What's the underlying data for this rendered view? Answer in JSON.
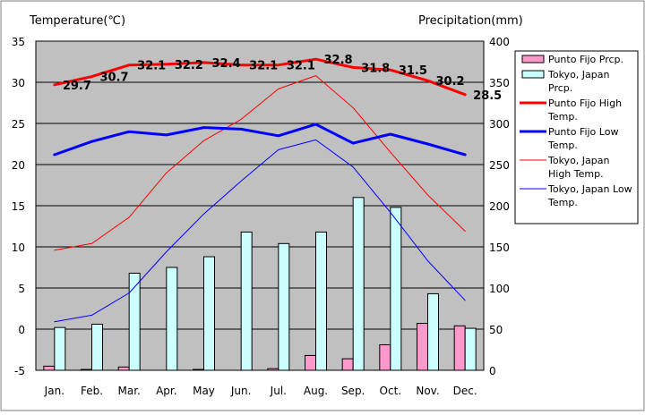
{
  "chart_data": {
    "type": "bar+line",
    "categories": [
      "Jan.",
      "Feb.",
      "Mar.",
      "Apr.",
      "May",
      "Jun.",
      "Jul.",
      "Aug.",
      "Sep.",
      "Oct.",
      "Nov.",
      "Dec."
    ],
    "y_left": {
      "label": "Temperature(℃)",
      "ylim": [
        -5,
        35
      ],
      "ticks": [
        -5,
        0,
        5,
        10,
        15,
        20,
        25,
        30,
        35
      ]
    },
    "y_right": {
      "label": "Precipitation(mm)",
      "ylim": [
        0,
        400
      ],
      "ticks": [
        0,
        50,
        100,
        150,
        200,
        250,
        300,
        350,
        400
      ]
    },
    "grid": true,
    "legend_position": "right",
    "bar_series": [
      {
        "name": "Punto Fijo Prcp.",
        "color": "#ff99cc",
        "values": [
          5,
          1,
          4,
          0,
          1,
          0,
          2,
          18,
          14,
          31,
          57,
          54
        ]
      },
      {
        "name": "Tokyo, Japan Prcp.",
        "color": "#ccffff",
        "values": [
          52,
          56,
          118,
          125,
          138,
          168,
          154,
          168,
          210,
          198,
          93,
          51
        ]
      }
    ],
    "line_series": [
      {
        "name": "Punto Fijo High Temp.",
        "color": "#ff0000",
        "width": 3,
        "values": [
          29.7,
          30.7,
          32.1,
          32.2,
          32.4,
          32.1,
          32.1,
          32.8,
          31.8,
          31.5,
          30.2,
          28.5
        ],
        "labels": [
          "29.7",
          "30.7",
          "32.1",
          "32.2",
          "32.4",
          "32.1",
          "32.1",
          "32.8",
          "31.8",
          "31.5",
          "30.2",
          "28.5"
        ]
      },
      {
        "name": "Punto Fijo Low Temp.",
        "color": "#0000ff",
        "width": 3,
        "values": [
          21.2,
          22.8,
          24.0,
          23.6,
          24.5,
          24.3,
          23.5,
          24.9,
          22.6,
          23.7,
          22.5,
          21.2
        ]
      },
      {
        "name": "Tokyo, Japan High Temp.",
        "color": "#ff0000",
        "width": 1,
        "values": [
          9.6,
          10.4,
          13.6,
          19.0,
          22.9,
          25.5,
          29.2,
          30.8,
          26.9,
          21.5,
          16.3,
          11.9
        ]
      },
      {
        "name": "Tokyo, Japan Low Temp.",
        "color": "#0000ff",
        "width": 1,
        "values": [
          0.9,
          1.7,
          4.4,
          9.4,
          14.0,
          18.0,
          21.8,
          23.0,
          19.7,
          14.2,
          8.3,
          3.5
        ]
      }
    ]
  }
}
